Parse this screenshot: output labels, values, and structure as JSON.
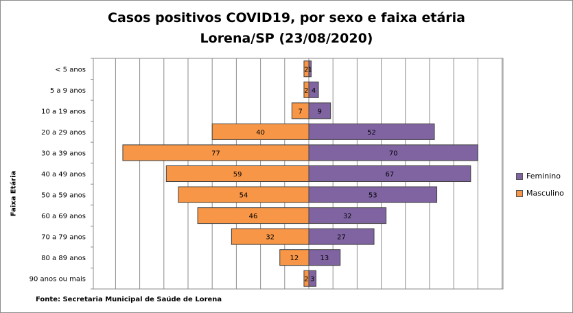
{
  "chart_data": {
    "type": "bar",
    "orientation": "horizontal",
    "title": "Casos positivos COVID19, por sexo e faixa etária",
    "subtitle": "Lorena/SP (23/08/2020)",
    "ylabel": "Faixa Etária",
    "xlabel": "",
    "source": "Fonte: Secretaria Municipal de Saúde de Lorena",
    "categories": [
      "< 5 anos",
      "5 a 9 anos",
      "10 a 19 anos",
      "20 a 29 anos",
      "30 a 39 anos",
      "40 a 49 anos",
      "50 a 59 anos",
      "60 a 69 anos",
      "70 a 79 anos",
      "80 a 89 anos",
      "90 anos ou mais"
    ],
    "series": [
      {
        "name": "Feminino",
        "color": "#8064a2",
        "values": [
          1,
          4,
          9,
          52,
          70,
          67,
          53,
          32,
          27,
          13,
          3
        ]
      },
      {
        "name": "Masculino",
        "color": "#f79646",
        "values": [
          2,
          2,
          7,
          40,
          77,
          59,
          54,
          46,
          32,
          12,
          2
        ]
      }
    ],
    "xlim": [
      -80,
      80
    ],
    "grid": true,
    "legend": "right"
  }
}
